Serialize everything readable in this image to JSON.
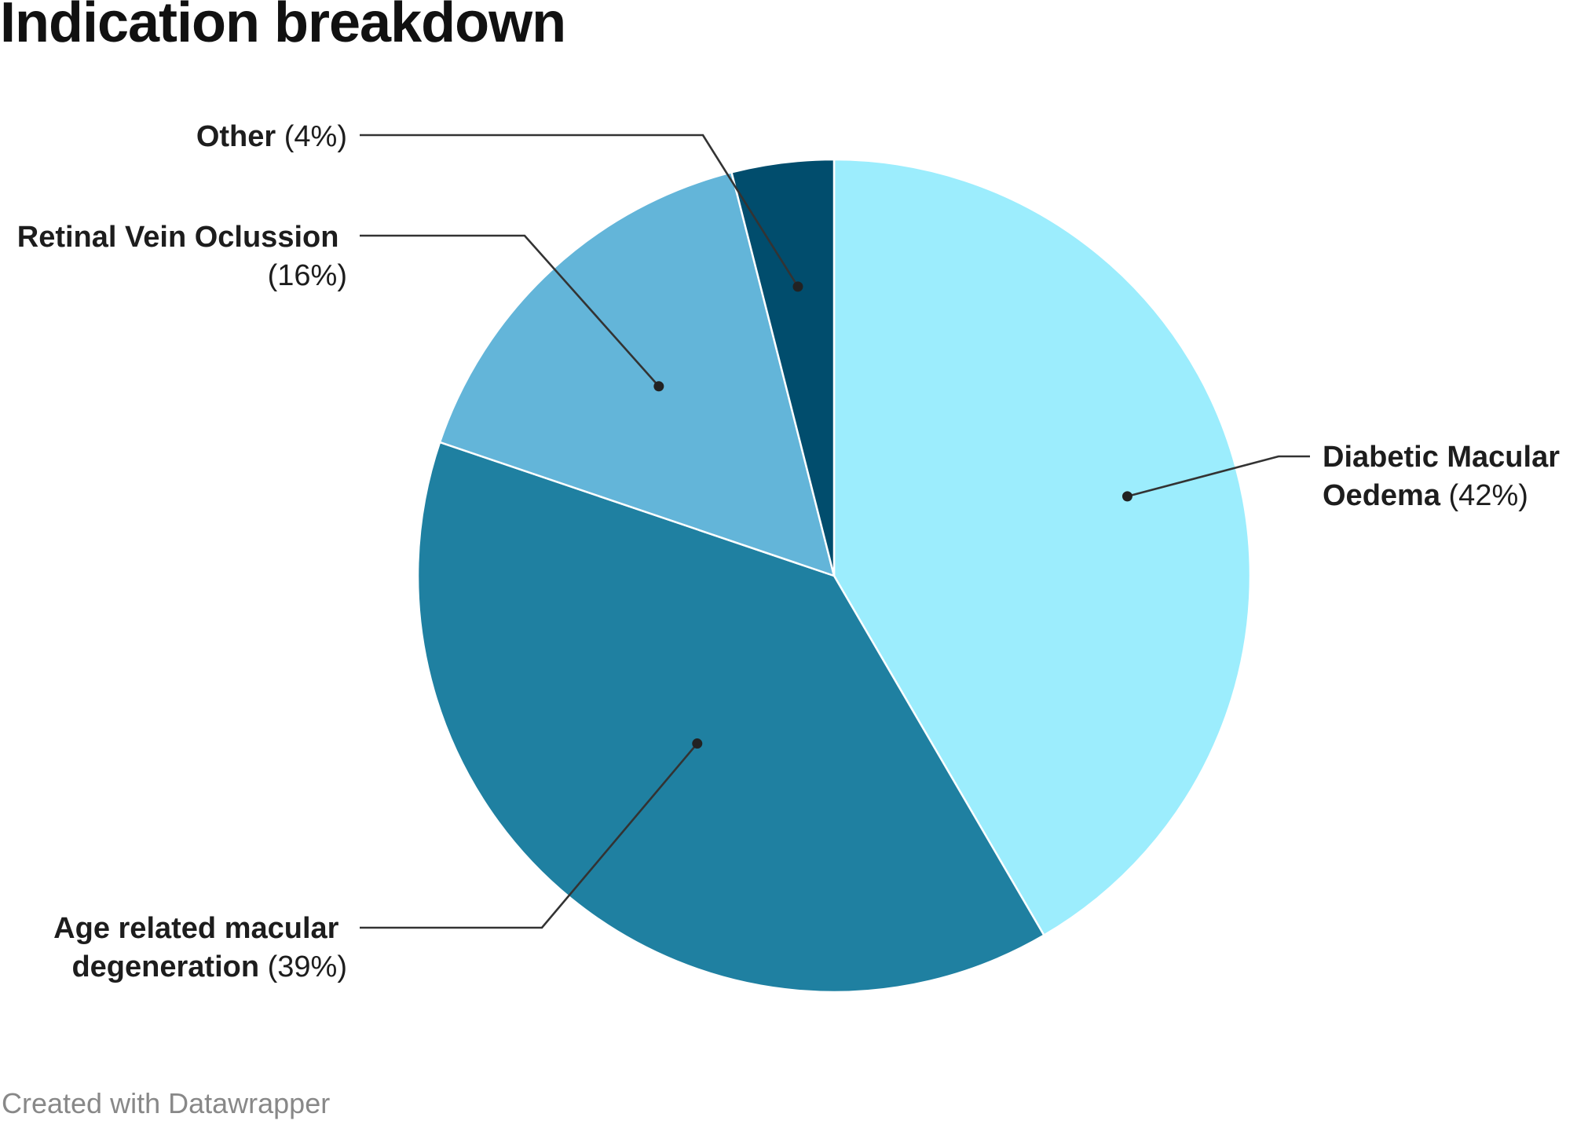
{
  "title": "Indication breakdown",
  "chart_data": {
    "type": "pie",
    "start_angle_deg": 0,
    "direction": "clockwise",
    "slices": [
      {
        "label": "Diabetic Macular Oedema",
        "value": 42,
        "value_label": "(42%)",
        "color": "#9cedfd"
      },
      {
        "label": "Age related macular degeneration",
        "value": 39,
        "value_label": "(39%)",
        "color": "#1f80a1"
      },
      {
        "label": "Retinal Vein Oclussion",
        "value": 16,
        "value_label": "(16%)",
        "color": "#63b5d9"
      },
      {
        "label": "Other",
        "value": 4,
        "value_label": "(4%)",
        "color": "#014d6d"
      }
    ]
  },
  "footer": {
    "credit": "Created with Datawrapper"
  }
}
